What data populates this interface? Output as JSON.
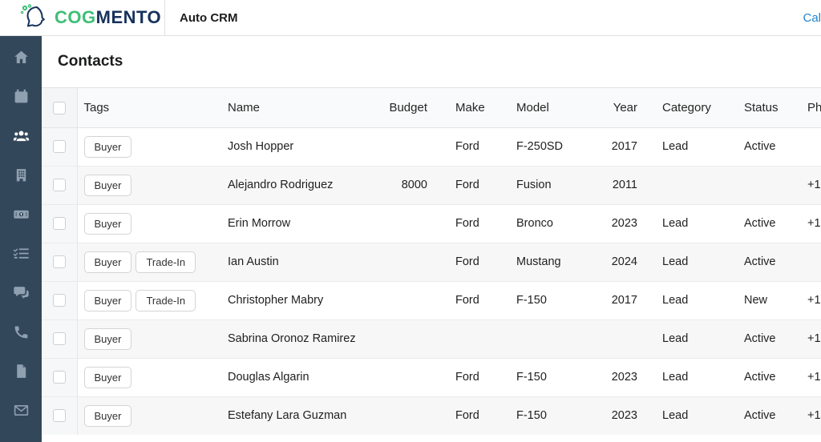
{
  "brand": {
    "logo_primary": "COG",
    "logo_secondary": "MENTO",
    "app_subtitle": "Auto CRM",
    "colors": {
      "green": "#3dbf77",
      "navy": "#16325c",
      "sidebar": "#33475b",
      "link_blue": "#2185d0"
    }
  },
  "topnav": {
    "calendar_link_label": "Cal"
  },
  "sidebar": {
    "items": [
      {
        "icon": "home-icon",
        "active": false
      },
      {
        "icon": "calendar-icon",
        "active": false
      },
      {
        "icon": "contacts-icon",
        "active": true
      },
      {
        "icon": "companies-icon",
        "active": false
      },
      {
        "icon": "deals-icon",
        "active": false
      },
      {
        "icon": "tasks-icon",
        "active": false
      },
      {
        "icon": "chat-icon",
        "active": false
      },
      {
        "icon": "calls-icon",
        "active": false
      },
      {
        "icon": "documents-icon",
        "active": false
      },
      {
        "icon": "email-icon",
        "active": false
      }
    ]
  },
  "page": {
    "title": "Contacts"
  },
  "table": {
    "columns": {
      "tags": "Tags",
      "name": "Name",
      "budget": "Budget",
      "make": "Make",
      "model": "Model",
      "year": "Year",
      "category": "Category",
      "status": "Status",
      "phone": "Ph"
    },
    "rows": [
      {
        "tags": [
          "Buyer"
        ],
        "name": "Josh Hopper",
        "budget": "",
        "make": "Ford",
        "model": "F-250SD",
        "year": "2017",
        "category": "Lead",
        "status": "Active",
        "phone": ""
      },
      {
        "tags": [
          "Buyer"
        ],
        "name": "Alejandro Rodriguez",
        "budget": "8000",
        "make": "Ford",
        "model": "Fusion",
        "year": "2011",
        "category": "",
        "status": "",
        "phone": "+1"
      },
      {
        "tags": [
          "Buyer"
        ],
        "name": "Erin Morrow",
        "budget": "",
        "make": "Ford",
        "model": "Bronco",
        "year": "2023",
        "category": "Lead",
        "status": "Active",
        "phone": "+1"
      },
      {
        "tags": [
          "Buyer",
          "Trade-In"
        ],
        "name": "Ian Austin",
        "budget": "",
        "make": "Ford",
        "model": "Mustang",
        "year": "2024",
        "category": "Lead",
        "status": "Active",
        "phone": ""
      },
      {
        "tags": [
          "Buyer",
          "Trade-In"
        ],
        "name": "Christopher Mabry",
        "budget": "",
        "make": "Ford",
        "model": "F-150",
        "year": "2017",
        "category": "Lead",
        "status": "New",
        "phone": "+1"
      },
      {
        "tags": [
          "Buyer"
        ],
        "name": "Sabrina Oronoz Ramirez",
        "budget": "",
        "make": "",
        "model": "",
        "year": "",
        "category": "Lead",
        "status": "Active",
        "phone": "+1"
      },
      {
        "tags": [
          "Buyer"
        ],
        "name": "Douglas Algarin",
        "budget": "",
        "make": "Ford",
        "model": "F-150",
        "year": "2023",
        "category": "Lead",
        "status": "Active",
        "phone": "+1"
      },
      {
        "tags": [
          "Buyer"
        ],
        "name": "Estefany Lara Guzman",
        "budget": "",
        "make": "Ford",
        "model": "F-150",
        "year": "2023",
        "category": "Lead",
        "status": "Active",
        "phone": "+1"
      }
    ]
  }
}
